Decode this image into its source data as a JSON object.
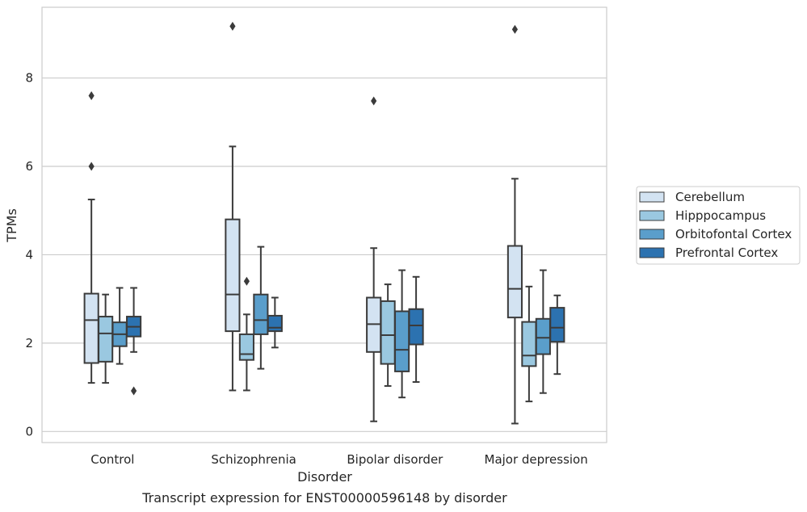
{
  "chart_data": {
    "type": "boxplot",
    "caption": "Transcript expression for ENST00000596148 by disorder",
    "xlabel": "Disorder",
    "ylabel": "TPMs",
    "ylim": [
      -0.25,
      9.6
    ],
    "yticks": [
      0,
      2,
      4,
      6,
      8
    ],
    "grid": "horizontal",
    "legend_placement": "right",
    "categories": [
      "Control",
      "Schizophrenia",
      "Bipolar disorder",
      "Major depression"
    ],
    "series": [
      {
        "name": "Cerebellum",
        "color": "#d3e3f2",
        "boxes": [
          {
            "whislo": 1.1,
            "q1": 1.55,
            "med": 2.52,
            "q3": 3.12,
            "whishi": 5.25,
            "fliers": [
              6.0,
              7.6
            ]
          },
          {
            "whislo": 0.93,
            "q1": 2.27,
            "med": 3.1,
            "q3": 4.8,
            "whishi": 6.45,
            "fliers": [
              9.17
            ]
          },
          {
            "whislo": 0.23,
            "q1": 1.8,
            "med": 2.43,
            "q3": 3.03,
            "whishi": 4.15,
            "fliers": [
              7.48
            ]
          },
          {
            "whislo": 0.18,
            "q1": 2.58,
            "med": 3.23,
            "q3": 4.2,
            "whishi": 5.72,
            "fliers": [
              9.1
            ]
          }
        ]
      },
      {
        "name": "Hipppocampus",
        "color": "#9ac8e0",
        "boxes": [
          {
            "whislo": 1.1,
            "q1": 1.58,
            "med": 2.22,
            "q3": 2.6,
            "whishi": 3.1,
            "fliers": []
          },
          {
            "whislo": 0.93,
            "q1": 1.62,
            "med": 1.75,
            "q3": 2.2,
            "whishi": 2.65,
            "fliers": [
              3.4
            ]
          },
          {
            "whislo": 1.03,
            "q1": 1.53,
            "med": 2.18,
            "q3": 2.95,
            "whishi": 3.33,
            "fliers": []
          },
          {
            "whislo": 0.68,
            "q1": 1.48,
            "med": 1.72,
            "q3": 2.48,
            "whishi": 3.28,
            "fliers": []
          }
        ]
      },
      {
        "name": "Orbitofontal Cortex",
        "color": "#5a9ecb",
        "boxes": [
          {
            "whislo": 1.53,
            "q1": 1.93,
            "med": 2.2,
            "q3": 2.47,
            "whishi": 3.25,
            "fliers": []
          },
          {
            "whislo": 1.42,
            "q1": 2.2,
            "med": 2.52,
            "q3": 3.1,
            "whishi": 4.18,
            "fliers": []
          },
          {
            "whislo": 0.77,
            "q1": 1.36,
            "med": 1.85,
            "q3": 2.72,
            "whishi": 3.65,
            "fliers": []
          },
          {
            "whislo": 0.87,
            "q1": 1.75,
            "med": 2.12,
            "q3": 2.55,
            "whishi": 3.65,
            "fliers": []
          }
        ]
      },
      {
        "name": "Prefrontal Cortex",
        "color": "#2c72b0",
        "boxes": [
          {
            "whislo": 1.8,
            "q1": 2.15,
            "med": 2.37,
            "q3": 2.6,
            "whishi": 3.25,
            "fliers": [
              0.92
            ]
          },
          {
            "whislo": 1.9,
            "q1": 2.27,
            "med": 2.35,
            "q3": 2.62,
            "whishi": 3.03,
            "fliers": []
          },
          {
            "whislo": 1.12,
            "q1": 1.97,
            "med": 2.4,
            "q3": 2.77,
            "whishi": 3.5,
            "fliers": []
          },
          {
            "whislo": 1.3,
            "q1": 2.03,
            "med": 2.35,
            "q3": 2.8,
            "whishi": 3.08,
            "fliers": []
          }
        ]
      }
    ]
  }
}
